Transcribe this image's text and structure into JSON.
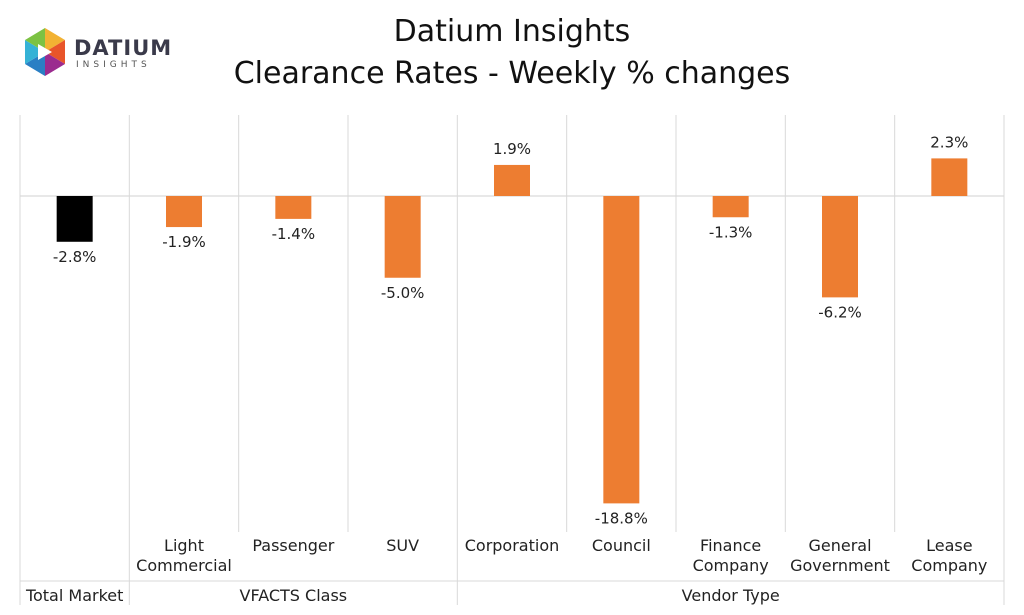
{
  "logo": {
    "word": "DATIUM",
    "sub": "INSIGHTS"
  },
  "chart_data": {
    "type": "bar",
    "title": "Datium Insights",
    "subtitle": "Clearance Rates - Weekly % changes",
    "unit": "%",
    "categories": [
      {
        "label": "Total Market",
        "line1": "",
        "line2": "",
        "value": -2.8,
        "data_label": "-2.8%",
        "color": "#000000"
      },
      {
        "label": "Light Commercial",
        "line1": "Light",
        "line2": "Commercial",
        "value": -1.9,
        "data_label": "-1.9%",
        "color": "#ED7D31"
      },
      {
        "label": "Passenger",
        "line1": "Passenger",
        "line2": "",
        "value": -1.4,
        "data_label": "-1.4%",
        "color": "#ED7D31"
      },
      {
        "label": "SUV",
        "line1": "SUV",
        "line2": "",
        "value": -5.0,
        "data_label": "-5.0%",
        "color": "#ED7D31"
      },
      {
        "label": "Corporation",
        "line1": "Corporation",
        "line2": "",
        "value": 1.9,
        "data_label": "1.9%",
        "color": "#ED7D31"
      },
      {
        "label": "Council",
        "line1": "Council",
        "line2": "",
        "value": -18.8,
        "data_label": "-18.8%",
        "color": "#ED7D31"
      },
      {
        "label": "Finance Company",
        "line1": "Finance",
        "line2": "Company",
        "value": -1.3,
        "data_label": "-1.3%",
        "color": "#ED7D31"
      },
      {
        "label": "General Government",
        "line1": "General",
        "line2": "Government",
        "value": -6.2,
        "data_label": "-6.2%",
        "color": "#ED7D31"
      },
      {
        "label": "Lease Company",
        "line1": "Lease",
        "line2": "Company",
        "value": 2.3,
        "data_label": "2.3%",
        "color": "#ED7D31"
      }
    ],
    "groups": [
      {
        "label": "Total Market",
        "start": 0,
        "end": 0
      },
      {
        "label": "VFACTS Class",
        "start": 1,
        "end": 3
      },
      {
        "label": "Vendor Type",
        "start": 4,
        "end": 8
      }
    ],
    "ylim": [
      -18.8,
      2.3
    ],
    "gridlines": true,
    "legend": "none"
  }
}
